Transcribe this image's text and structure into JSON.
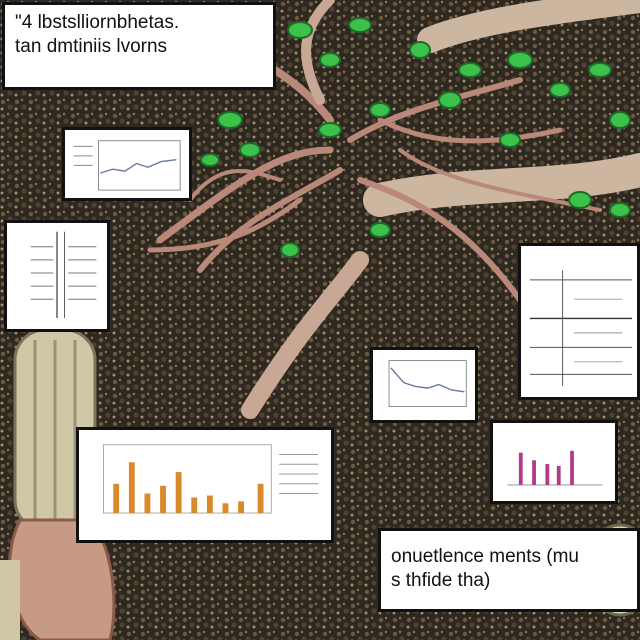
{
  "captions": {
    "top_left_line1": "\"4 lbstslliornbhetas.",
    "top_left_line2": "tan dmtiniis lvorns",
    "bottom_right_line1": "onuetlence ments (mu",
    "bottom_right_line2": "s thfide tha)"
  },
  "colors": {
    "soil": "#3a3226",
    "root": "#c79a86",
    "leaf": "#3cc24a",
    "stem": "#cfc7a6",
    "bar_orange": "#d9892b",
    "bar_magenta": "#b23a8c"
  },
  "icons": [
    "plant-root-illustration",
    "leaf-icon"
  ]
}
